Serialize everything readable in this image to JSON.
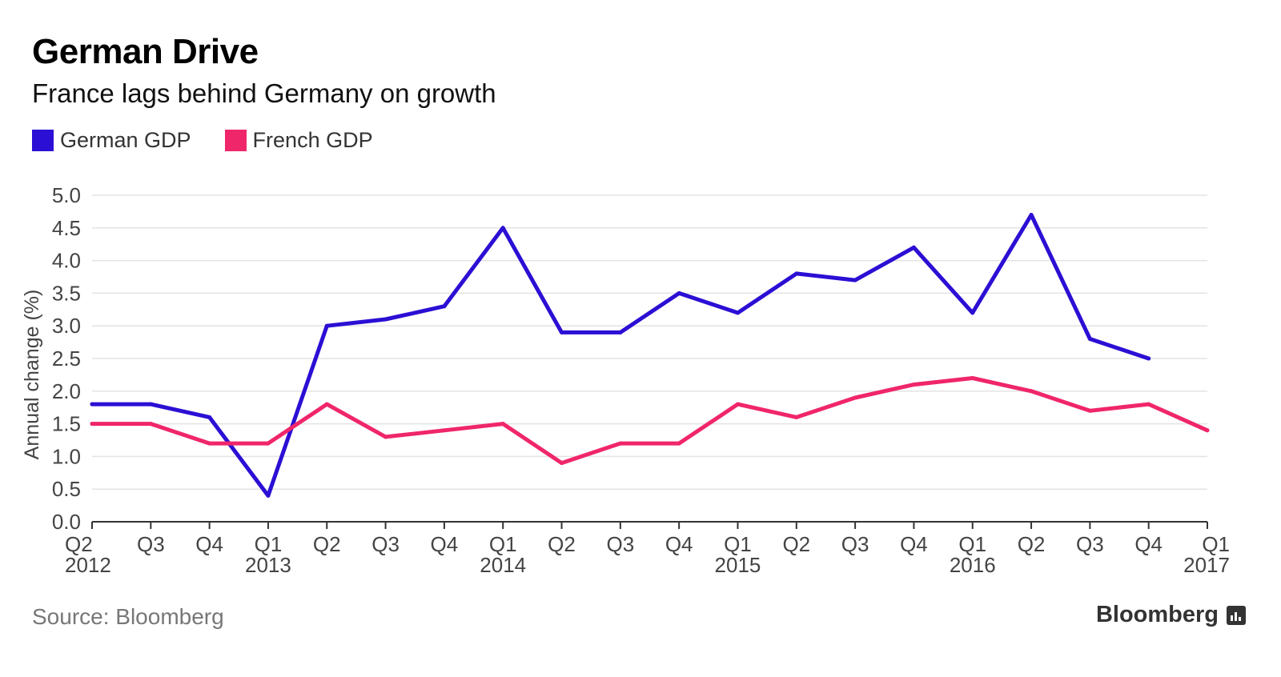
{
  "header": {
    "title": "German Drive",
    "subtitle": "France lags behind Germany on growth"
  },
  "legend": [
    {
      "label": "German GDP",
      "color": "#2b0fd4"
    },
    {
      "label": "French GDP",
      "color": "#f0266a"
    }
  ],
  "footer": {
    "source": "Source: Bloomberg",
    "brand": "Bloomberg",
    "brand_icon": "bloomberg-terminal-icon"
  },
  "chart_data": {
    "type": "line",
    "ylabel": "Annual change (%)",
    "ylim": [
      0,
      5
    ],
    "yticks": [
      "0.0",
      "0.5",
      "1.0",
      "1.5",
      "2.0",
      "2.5",
      "3.0",
      "3.5",
      "4.0",
      "4.5",
      "5.0"
    ],
    "grid": true,
    "legend_position": "top-left",
    "categories": [
      "Q2 2012",
      "Q3 2012",
      "Q4 2012",
      "Q1 2013",
      "Q2 2013",
      "Q3 2013",
      "Q4 2013",
      "Q1 2014",
      "Q2 2014",
      "Q3 2014",
      "Q4 2014",
      "Q1 2015",
      "Q2 2015",
      "Q3 2015",
      "Q4 2015",
      "Q1 2016",
      "Q2 2016",
      "Q3 2016",
      "Q4 2016",
      "Q1 2017"
    ],
    "x_tick_labels": [
      {
        "q": "Q2",
        "year": "2012"
      },
      {
        "q": "Q3",
        "year": ""
      },
      {
        "q": "Q4",
        "year": ""
      },
      {
        "q": "Q1",
        "year": "2013"
      },
      {
        "q": "Q2",
        "year": ""
      },
      {
        "q": "Q3",
        "year": ""
      },
      {
        "q": "Q4",
        "year": ""
      },
      {
        "q": "Q1",
        "year": "2014"
      },
      {
        "q": "Q2",
        "year": ""
      },
      {
        "q": "Q3",
        "year": ""
      },
      {
        "q": "Q4",
        "year": ""
      },
      {
        "q": "Q1",
        "year": "2015"
      },
      {
        "q": "Q2",
        "year": ""
      },
      {
        "q": "Q3",
        "year": ""
      },
      {
        "q": "Q4",
        "year": ""
      },
      {
        "q": "Q1",
        "year": "2016"
      },
      {
        "q": "Q2",
        "year": ""
      },
      {
        "q": "Q3",
        "year": ""
      },
      {
        "q": "Q4",
        "year": ""
      },
      {
        "q": "Q1",
        "year": "2017"
      }
    ],
    "series": [
      {
        "name": "German GDP",
        "color": "#2b0fd4",
        "values": [
          1.8,
          1.8,
          1.6,
          0.4,
          3.0,
          3.1,
          3.3,
          4.5,
          2.9,
          2.9,
          3.5,
          3.2,
          3.8,
          3.7,
          4.2,
          3.2,
          4.7,
          2.8,
          2.5,
          null
        ]
      },
      {
        "name": "French GDP",
        "color": "#f0266a",
        "values": [
          1.5,
          1.5,
          1.2,
          1.2,
          1.8,
          1.3,
          1.4,
          1.5,
          0.9,
          1.2,
          1.2,
          1.8,
          1.6,
          1.9,
          2.1,
          2.2,
          2.0,
          1.7,
          1.8,
          1.4
        ]
      }
    ]
  }
}
